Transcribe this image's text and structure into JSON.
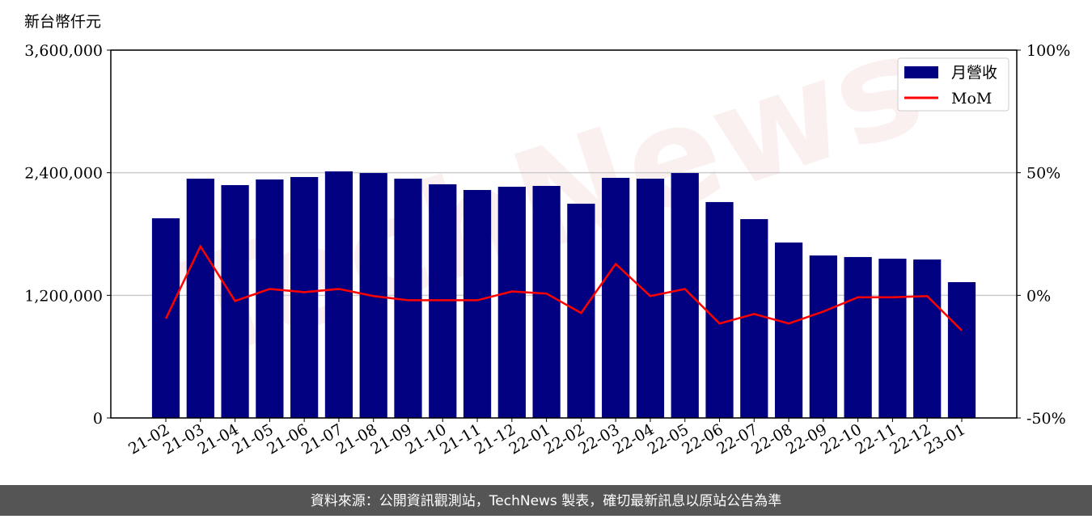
{
  "chart_data": {
    "type": "bar_line",
    "y_label": "新台幣仟元",
    "watermark": "TechNews",
    "source": "資料來源：公開資訊觀測站，TechNews 製表，確切最新訊息以原站公告為準",
    "categories": [
      "21-02",
      "21-03",
      "21-04",
      "21-05",
      "21-06",
      "21-07",
      "21-08",
      "21-09",
      "21-10",
      "21-11",
      "21-12",
      "22-01",
      "22-02",
      "22-03",
      "22-04",
      "22-05",
      "22-06",
      "22-07",
      "22-08",
      "22-09",
      "22-10",
      "22-11",
      "22-12",
      "23-01"
    ],
    "series": [
      {
        "name": "月營收",
        "type": "bar",
        "color": "#000080",
        "values": [
          1954000,
          2342000,
          2279000,
          2334000,
          2358000,
          2413000,
          2397000,
          2342000,
          2287000,
          2231000,
          2263000,
          2271000,
          2097000,
          2350000,
          2342000,
          2397000,
          2113000,
          1946000,
          1717000,
          1590000,
          1575000,
          1559000,
          1551000,
          1329000
        ]
      },
      {
        "name": "MoM",
        "type": "line",
        "axis": "y2",
        "color": "#ff0000",
        "values": [
          -9.5,
          20,
          -2.3,
          2.6,
          1.3,
          2.6,
          -0.3,
          -2.0,
          -2.0,
          -2.0,
          1.6,
          0.7,
          -7.2,
          12.8,
          -0.3,
          2.6,
          -11.5,
          -7.6,
          -11.5,
          -6.6,
          -0.8,
          -0.8,
          -0.3,
          -14.3
        ]
      }
    ],
    "ylim": [
      0,
      3600000
    ],
    "yticks": [
      0,
      {
        "value": 1200000,
        "label": "1,200,000"
      },
      {
        "value": 2400000,
        "label": "2,400,000"
      },
      {
        "value": 3600000,
        "label": "3,600,000"
      }
    ],
    "y2lim": [
      -50,
      100
    ],
    "y2ticks": [
      {
        "value": -50,
        "label": "-50%"
      },
      {
        "value": 0,
        "label": "0%"
      },
      {
        "value": 50,
        "label": "50%"
      },
      {
        "value": 100,
        "label": "100%"
      }
    ],
    "grid": true,
    "legend": "upper right"
  }
}
